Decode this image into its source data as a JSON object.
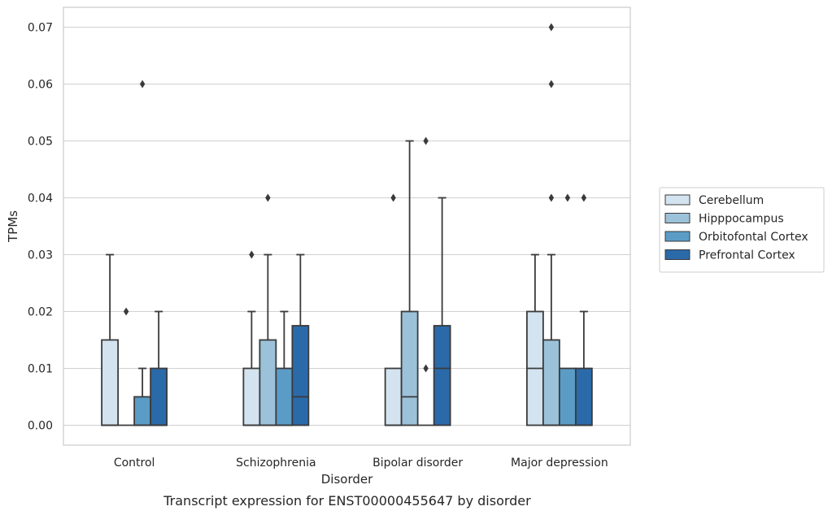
{
  "chart_data": {
    "type": "box",
    "caption": "Transcript expression for ENST00000455647 by disorder",
    "xlabel": "Disorder",
    "ylabel": "TPMs",
    "ylim": [
      -0.0035,
      0.0735
    ],
    "yticks": [
      "0.00",
      "0.01",
      "0.02",
      "0.03",
      "0.04",
      "0.05",
      "0.06",
      "0.07"
    ],
    "grid": "horizontal",
    "legend_position": "right",
    "categories": [
      "Control",
      "Schizophrenia",
      "Bipolar disorder",
      "Major depression"
    ],
    "series": [
      {
        "name": "Cerebellum",
        "color": "#d4e3f0",
        "boxes": [
          {
            "q1": 0.0,
            "median": 0.0,
            "q3": 0.015,
            "whisker_low": 0.0,
            "whisker_high": 0.03,
            "outliers": []
          },
          {
            "q1": 0.0,
            "median": 0.0,
            "q3": 0.01,
            "whisker_low": 0.0,
            "whisker_high": 0.02,
            "outliers": [
              0.03
            ]
          },
          {
            "q1": 0.0,
            "median": 0.0,
            "q3": 0.01,
            "whisker_low": 0.0,
            "whisker_high": 0.01,
            "outliers": [
              0.04
            ]
          },
          {
            "q1": 0.0,
            "median": 0.01,
            "q3": 0.02,
            "whisker_low": 0.0,
            "whisker_high": 0.03,
            "outliers": []
          }
        ]
      },
      {
        "name": "Hipppocampus",
        "color": "#9cc2da",
        "boxes": [
          {
            "q1": 0.0,
            "median": 0.0,
            "q3": 0.0,
            "whisker_low": 0.0,
            "whisker_high": 0.0,
            "outliers": [
              0.02
            ]
          },
          {
            "q1": 0.0,
            "median": 0.0,
            "q3": 0.015,
            "whisker_low": 0.0,
            "whisker_high": 0.03,
            "outliers": [
              0.04
            ]
          },
          {
            "q1": 0.0,
            "median": 0.005,
            "q3": 0.02,
            "whisker_low": 0.0,
            "whisker_high": 0.05,
            "outliers": []
          },
          {
            "q1": 0.0,
            "median": 0.0,
            "q3": 0.015,
            "whisker_low": 0.0,
            "whisker_high": 0.03,
            "outliers": [
              0.04,
              0.06,
              0.07
            ]
          }
        ]
      },
      {
        "name": "Orbitofontal Cortex",
        "color": "#5b9cc6",
        "boxes": [
          {
            "q1": 0.0,
            "median": 0.0,
            "q3": 0.005,
            "whisker_low": 0.0,
            "whisker_high": 0.01,
            "outliers": [
              0.06
            ]
          },
          {
            "q1": 0.0,
            "median": 0.0,
            "q3": 0.01,
            "whisker_low": 0.0,
            "whisker_high": 0.02,
            "outliers": []
          },
          {
            "q1": 0.0,
            "median": 0.0,
            "q3": 0.0,
            "whisker_low": 0.0,
            "whisker_high": 0.0,
            "outliers": [
              0.01,
              0.05
            ]
          },
          {
            "q1": 0.0,
            "median": 0.0,
            "q3": 0.01,
            "whisker_low": 0.0,
            "whisker_high": 0.01,
            "outliers": [
              0.04
            ]
          }
        ]
      },
      {
        "name": "Prefrontal Cortex",
        "color": "#2b6aa9",
        "boxes": [
          {
            "q1": 0.0,
            "median": 0.0,
            "q3": 0.01,
            "whisker_low": 0.0,
            "whisker_high": 0.02,
            "outliers": []
          },
          {
            "q1": 0.0,
            "median": 0.005,
            "q3": 0.0175,
            "whisker_low": 0.0,
            "whisker_high": 0.03,
            "outliers": []
          },
          {
            "q1": 0.0,
            "median": 0.01,
            "q3": 0.0175,
            "whisker_low": 0.0,
            "whisker_high": 0.04,
            "outliers": []
          },
          {
            "q1": 0.0,
            "median": 0.0,
            "q3": 0.01,
            "whisker_low": 0.0,
            "whisker_high": 0.02,
            "outliers": [
              0.04
            ]
          }
        ]
      }
    ]
  }
}
